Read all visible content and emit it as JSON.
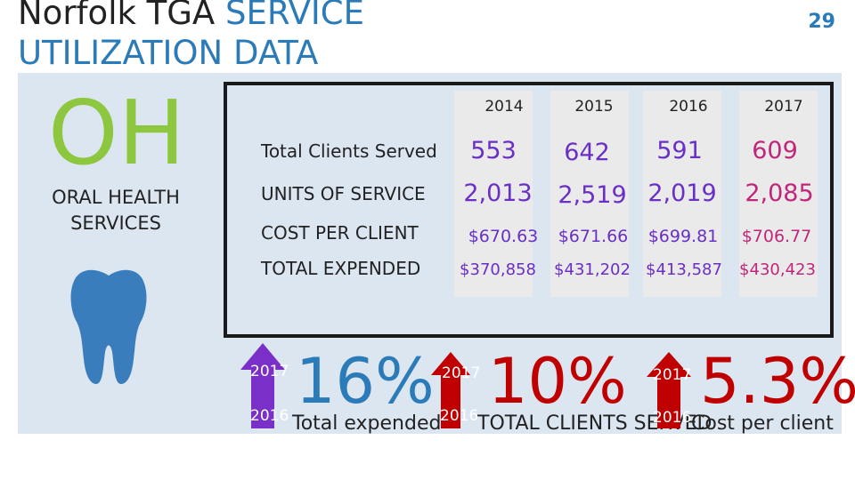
{
  "title": {
    "part1": "Norfolk TGA",
    "part2": "SERVICE",
    "line2": "UTILIZATION DATA"
  },
  "page_number": "29",
  "section": {
    "abbrev": "OH",
    "name": "ORAL HEALTH SERVICES",
    "icon": "tooth-icon"
  },
  "years": [
    "2014",
    "2015",
    "2016",
    "2017"
  ],
  "rows": [
    {
      "label": "Total Clients Served",
      "values": [
        "553",
        "642",
        "591",
        "609"
      ]
    },
    {
      "label": "UNITS OF SERVICE",
      "values": [
        "2,013",
        "2,519",
        "2,019",
        "2,085"
      ]
    },
    {
      "label": "COST PER CLIENT",
      "values": [
        "$670.63",
        "$671.66",
        "$699.81",
        "$706.77"
      ]
    },
    {
      "label": "TOTAL EXPENDED",
      "values": [
        "$370,858",
        "$431,202",
        "$413,587",
        "$430,423"
      ]
    }
  ],
  "stats": [
    {
      "top": "2017",
      "bottom": "2016",
      "pct": "16%",
      "caption": "Total expended"
    },
    {
      "top": "2017",
      "bottom": "2016",
      "pct": "10%",
      "caption": "TOTAL CLIENTS SERVED"
    },
    {
      "top": "2017",
      "bottom": "2016",
      "pct": "5.3%",
      "caption": "Cost per client"
    }
  ],
  "colors": {
    "accent": "#2b7bb9",
    "green": "#8dc63f",
    "red": "#c00000",
    "purple": "#6a2fc4",
    "magenta": "#c0267a"
  }
}
